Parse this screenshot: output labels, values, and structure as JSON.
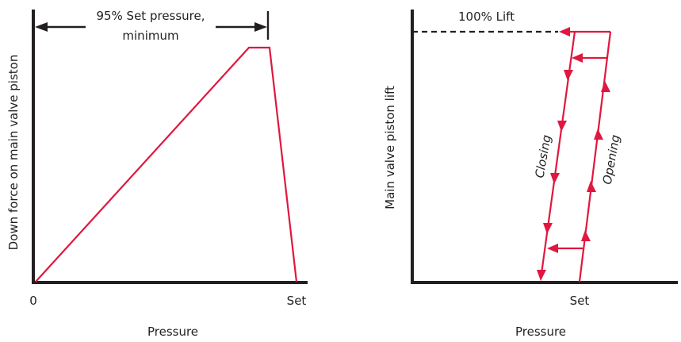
{
  "left_diagram": {
    "ylabel": "Down force on main valve piston",
    "xlabel": "Pressure",
    "tick_zero": "0",
    "tick_set": "Set",
    "dimension_label_line1": "95% Set pressure,",
    "dimension_label_line2": "minimum"
  },
  "right_diagram": {
    "ylabel": "Main valve piston lift",
    "xlabel": "Pressure",
    "tick_set": "Set",
    "lift_label": "100% Lift",
    "closing_label": "Closing",
    "opening_label": "Opening"
  },
  "colors": {
    "curve": "#e0173f",
    "axis": "#231f20"
  }
}
